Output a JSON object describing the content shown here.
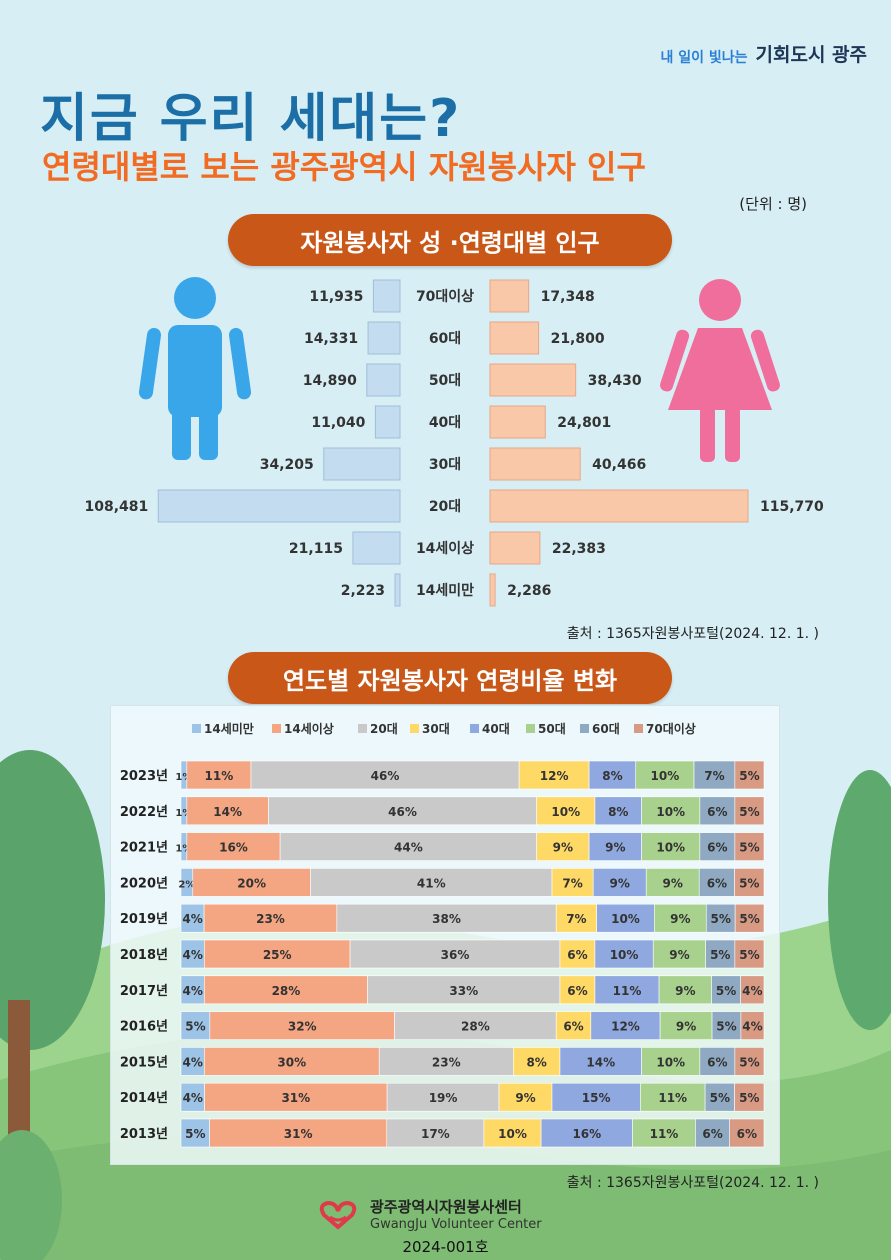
{
  "brand": {
    "slogan": "내 일이 빛나는",
    "name": "기회도시 광주"
  },
  "title": "지금 우리 세대는?",
  "subtitle": "연령대별로 보는 광주광역시 자원봉사자 인구",
  "unit": "(단위 : 명)",
  "section1_title": "자원봉사자 성 ·연령대별 인구",
  "section2_title": "연도별 자원봉사자 연령비율 변화",
  "source1": "출처 : 1365자원봉사포털(2024. 12. 1. )",
  "source2": "출처 : 1365자원봉사포털(2024. 12. 1. )",
  "footer": {
    "org_ko": "광주광역시자원봉사센터",
    "org_en": "GwangJu Volunteer Center",
    "issue": "2024-001호"
  },
  "colors": {
    "male": "#3aa6ea",
    "female": "#f06e9c",
    "male_bar": "#c4dcf0",
    "female_bar": "#f8c8a8"
  },
  "chart_data": [
    {
      "type": "bar",
      "orientation": "horizontal-butterfly",
      "categories": [
        "70대이상",
        "60대",
        "50대",
        "40대",
        "30대",
        "20대",
        "14세이상",
        "14세미만"
      ],
      "series": [
        {
          "values": [
            11935,
            14331,
            14890,
            11040,
            34205,
            108481,
            21115,
            2223
          ]
        },
        {
          "values": [
            17348,
            21800,
            38430,
            24801,
            40466,
            115770,
            22383,
            2286
          ]
        }
      ],
      "value_labels": {
        "left": [
          "11,935",
          "14,331",
          "14,890",
          "11,040",
          "34,205",
          "108,481",
          "21,115",
          "2,223"
        ],
        "right": [
          "17,348",
          "21,800",
          "38,430",
          "24,801",
          "40,466",
          "115,770",
          "22,383",
          "2,286"
        ]
      },
      "icons": [
        "male-person-icon",
        "female-person-icon"
      ]
    },
    {
      "type": "bar",
      "orientation": "horizontal-stacked-100",
      "legend_position": "top",
      "categories": [
        "2023년",
        "2022년",
        "2021년",
        "2020년",
        "2019년",
        "2018년",
        "2017년",
        "2016년",
        "2015년",
        "2014년",
        "2013년"
      ],
      "series": [
        {
          "name": "14세미만",
          "color": "#9dc3e6",
          "values": [
            1,
            1,
            1,
            2,
            4,
            4,
            4,
            5,
            4,
            4,
            5
          ]
        },
        {
          "name": "14세이상",
          "color": "#f4a582",
          "values": [
            11,
            14,
            16,
            20,
            23,
            25,
            28,
            32,
            30,
            31,
            31
          ]
        },
        {
          "name": "20대",
          "color": "#c9c9c9",
          "values": [
            46,
            46,
            44,
            41,
            38,
            36,
            33,
            28,
            23,
            19,
            17
          ]
        },
        {
          "name": "30대",
          "color": "#ffd966",
          "values": [
            12,
            10,
            9,
            7,
            7,
            6,
            6,
            6,
            8,
            9,
            10
          ]
        },
        {
          "name": "40대",
          "color": "#8fa8e0",
          "values": [
            8,
            8,
            9,
            9,
            10,
            10,
            11,
            12,
            14,
            15,
            16
          ]
        },
        {
          "name": "50대",
          "color": "#a9d18e",
          "values": [
            10,
            10,
            10,
            9,
            9,
            9,
            9,
            9,
            10,
            11,
            11
          ]
        },
        {
          "name": "60대",
          "color": "#8ea9c1",
          "values": [
            7,
            6,
            6,
            6,
            5,
            5,
            5,
            5,
            6,
            5,
            6
          ]
        },
        {
          "name": "70대이상",
          "color": "#d99a84",
          "values": [
            5,
            5,
            5,
            5,
            5,
            5,
            4,
            4,
            5,
            5,
            6
          ]
        }
      ]
    }
  ]
}
